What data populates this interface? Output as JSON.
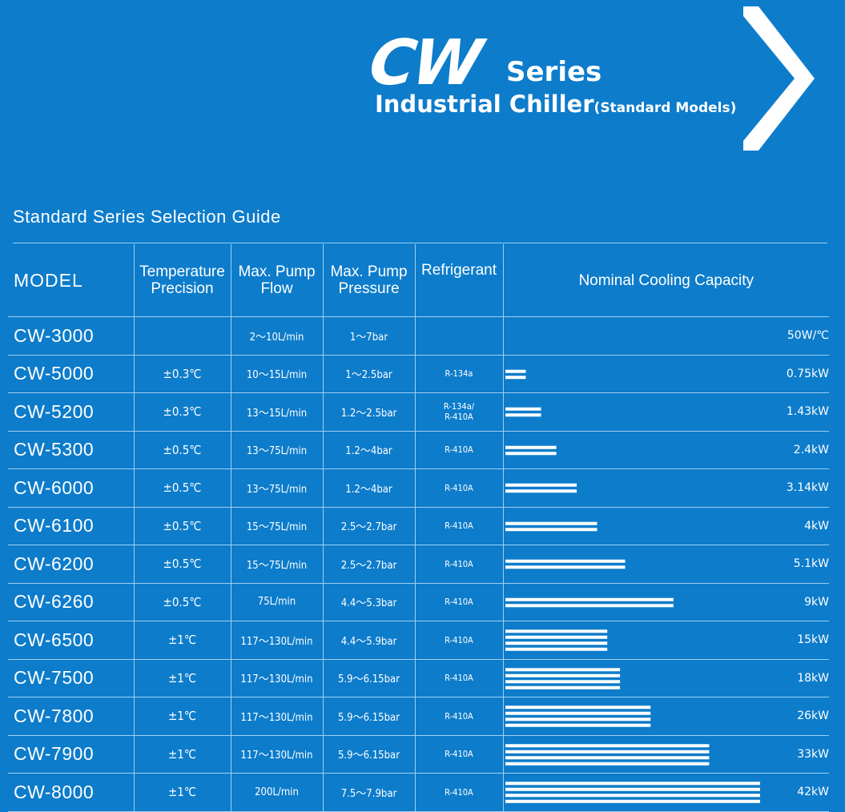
{
  "header": {
    "logo_text": "CW",
    "series": "Series",
    "title": "Industrial Chiller",
    "title_small": "(Standard Models)"
  },
  "guide_title": "Standard Series Selection Guide",
  "columns": {
    "model": "MODEL",
    "precision": [
      "Temperature",
      "Precision"
    ],
    "flow": [
      "Max. Pump",
      "Flow"
    ],
    "pressure": [
      "Max. Pump",
      "Pressure"
    ],
    "refrigerant": "Refrigerant",
    "capacity": "Nominal Cooling Capacity"
  },
  "colors": {
    "background": "#0d7ccb",
    "text": "#ffffff",
    "rule": "#9fd0f2"
  },
  "chart_data": {
    "type": "bar",
    "categories": [
      "CW-3000",
      "CW-5000",
      "CW-5200",
      "CW-5300",
      "CW-6000",
      "CW-6100",
      "CW-6200",
      "CW-6260",
      "CW-6500",
      "CW-7500",
      "CW-7800",
      "CW-7900",
      "CW-8000"
    ],
    "bar_lines": [
      0,
      2,
      2,
      2,
      2,
      2,
      2,
      2,
      4,
      4,
      4,
      4,
      4
    ],
    "bar_lengths": [
      0,
      0.08,
      0.14,
      0.2,
      0.28,
      0.36,
      0.47,
      0.66,
      0.4,
      0.45,
      0.57,
      0.8,
      1.0
    ]
  },
  "rows": [
    {
      "model": "CW-3000",
      "precision": "",
      "flow": "2～10L/min",
      "pressure": "1～7bar",
      "refrigerant": [
        "",
        ""
      ],
      "capacity": "50W/℃"
    },
    {
      "model": "CW-5000",
      "precision": "±0.3℃",
      "flow": "10～15L/min",
      "pressure": "1～2.5bar",
      "refrigerant": [
        "R-134a",
        ""
      ],
      "capacity": "0.75kW"
    },
    {
      "model": "CW-5200",
      "precision": "±0.3℃",
      "flow": "13～15L/min",
      "pressure": "1.2～2.5bar",
      "refrigerant": [
        "R-134a/",
        "R-410A"
      ],
      "capacity": "1.43kW"
    },
    {
      "model": "CW-5300",
      "precision": "±0.5℃",
      "flow": "13～75L/min",
      "pressure": "1.2～4bar",
      "refrigerant": [
        "R-410A",
        ""
      ],
      "capacity": "2.4kW"
    },
    {
      "model": "CW-6000",
      "precision": "±0.5℃",
      "flow": "13～75L/min",
      "pressure": "1.2～4bar",
      "refrigerant": [
        "R-410A",
        ""
      ],
      "capacity": "3.14kW"
    },
    {
      "model": "CW-6100",
      "precision": "±0.5℃",
      "flow": "15～75L/min",
      "pressure": "2.5～2.7bar",
      "refrigerant": [
        "R-410A",
        ""
      ],
      "capacity": "4kW"
    },
    {
      "model": "CW-6200",
      "precision": "±0.5℃",
      "flow": "15～75L/min",
      "pressure": "2.5～2.7bar",
      "refrigerant": [
        "R-410A",
        ""
      ],
      "capacity": "5.1kW"
    },
    {
      "model": "CW-6260",
      "precision": "±0.5℃",
      "flow": "75L/min",
      "pressure": "4.4～5.3bar",
      "refrigerant": [
        "R-410A",
        ""
      ],
      "capacity": "9kW"
    },
    {
      "model": "CW-6500",
      "precision": "±1℃",
      "flow": "117～130L/min",
      "pressure": "4.4～5.9bar",
      "refrigerant": [
        "R-410A",
        ""
      ],
      "capacity": "15kW"
    },
    {
      "model": "CW-7500",
      "precision": "±1℃",
      "flow": "117～130L/min",
      "pressure": "5.9～6.15bar",
      "refrigerant": [
        "R-410A",
        ""
      ],
      "capacity": "18kW"
    },
    {
      "model": "CW-7800",
      "precision": "±1℃",
      "flow": "117～130L/min",
      "pressure": "5.9～6.15bar",
      "refrigerant": [
        "R-410A",
        ""
      ],
      "capacity": "26kW"
    },
    {
      "model": "CW-7900",
      "precision": "±1℃",
      "flow": "117～130L/min",
      "pressure": "5.9～6.15bar",
      "refrigerant": [
        "R-410A",
        ""
      ],
      "capacity": "33kW"
    },
    {
      "model": "CW-8000",
      "precision": "±1℃",
      "flow": "200L/min",
      "pressure": "7.5～7.9bar",
      "refrigerant": [
        "R-410A",
        ""
      ],
      "capacity": "42kW"
    }
  ]
}
